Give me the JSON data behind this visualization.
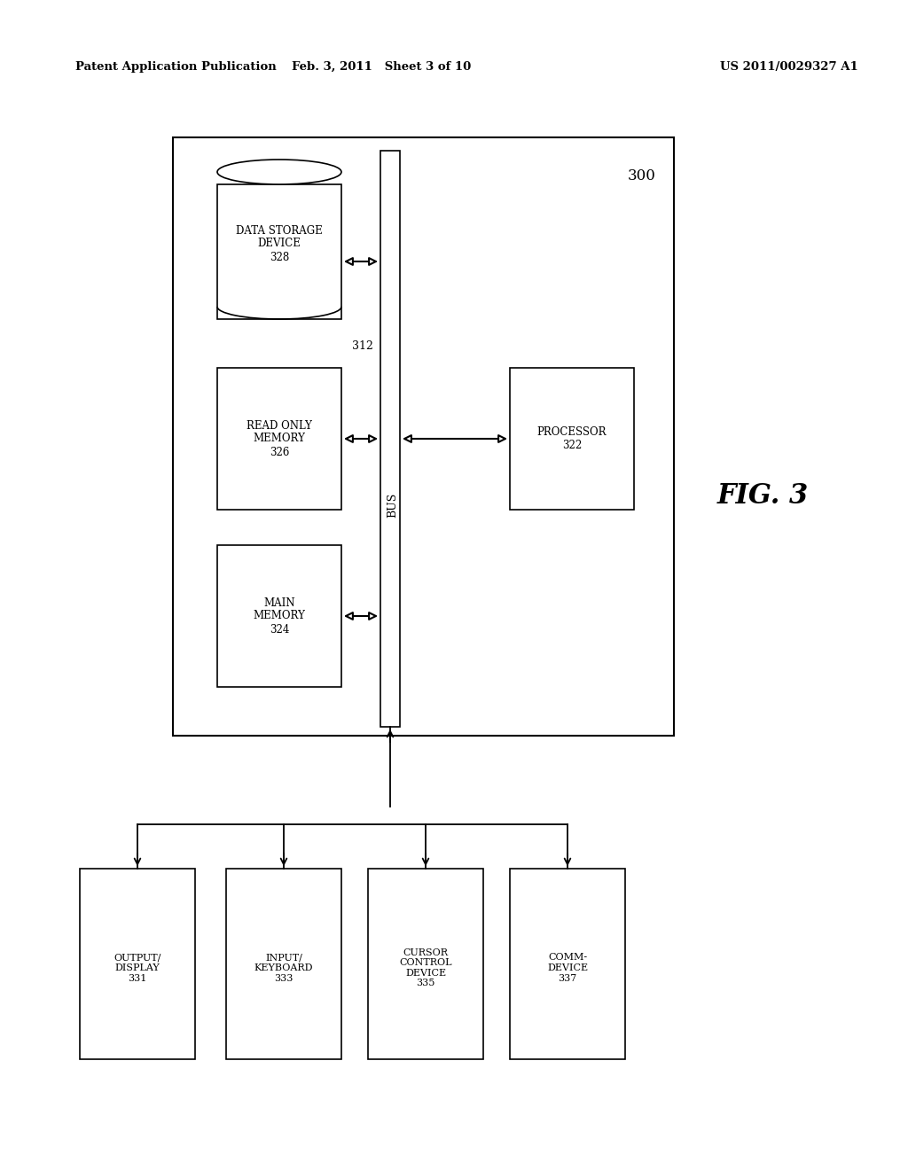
{
  "bg_color": "#ffffff",
  "header_left": "Patent Application Publication",
  "header_mid": "Feb. 3, 2011   Sheet 3 of 10",
  "header_right": "US 2011/0029327 A1",
  "fig_label": "FIG. 3",
  "system_label": "300",
  "bus_label": "312",
  "bus_sublabel": "BUS",
  "data_storage_label": "DATA STORAGE\nDEVICE\n328",
  "rom_label": "READ ONLY\nMEMORY\n326",
  "main_mem_label": "MAIN\nMEMORY\n324",
  "processor_label": "PROCESSOR\n322",
  "output_display_label": "OUTPUT/\nDISPLAY\n331",
  "input_keyboard_label": "INPUT/\nKEYBOARD\n333",
  "cursor_control_label": "CURSOR\nCONTROL\nDEVICE\n335",
  "comm_device_label": "COMM-\nDEVICE\n337"
}
